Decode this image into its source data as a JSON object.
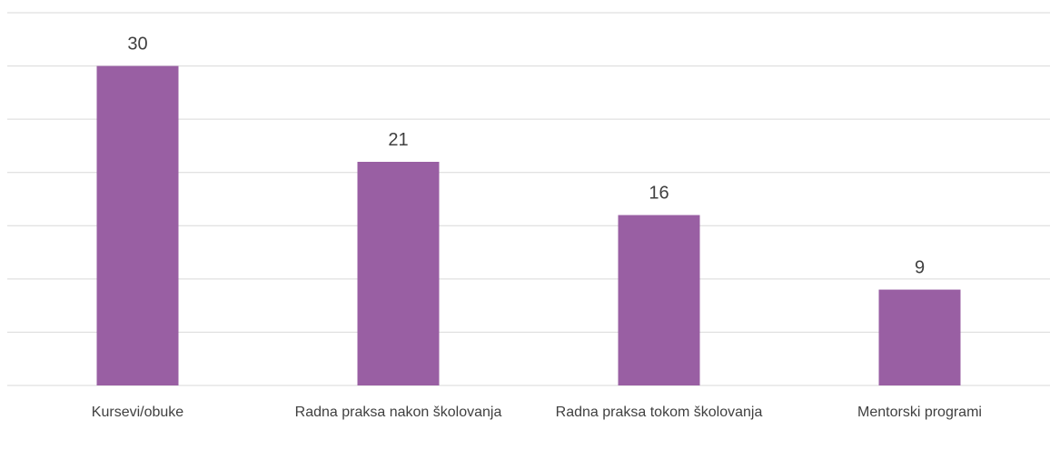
{
  "chart_data": {
    "type": "bar",
    "categories": [
      "Kursevi/obuke",
      "Radna praksa nakon školovanja",
      "Radna praksa tokom školovanja",
      "Mentorski programi"
    ],
    "values": [
      30,
      21,
      16,
      9
    ],
    "color": "#995fa3",
    "ylim": [
      0,
      35
    ],
    "yticks": [
      0,
      5,
      10,
      15,
      20,
      25,
      30,
      35
    ],
    "grid": true
  }
}
